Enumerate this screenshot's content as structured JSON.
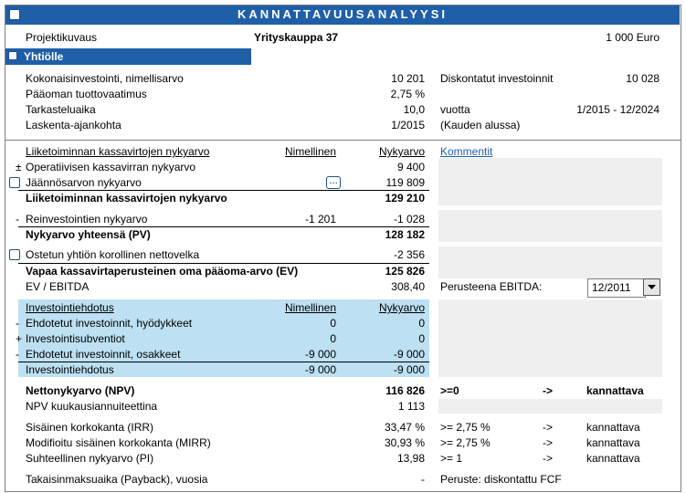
{
  "header": {
    "title": "KANNATTAVUUSANALYYSI"
  },
  "project": {
    "label": "Projektikuvaus",
    "name": "Yrityskauppa 37",
    "unit": "1 000 Euro"
  },
  "section": "Yhtiölle",
  "basics": [
    [
      "Kokonaisinvestointi, nimellisarvo",
      "10 201",
      "Diskontatut investoinnit",
      "10 028"
    ],
    [
      "Pääoman tuottovaatimus",
      "2,75 %"
    ],
    [
      "Tarkasteluaika",
      "10,0",
      "vuotta",
      "1/2015 - 12/2024"
    ],
    [
      "Laskenta-ajankohta",
      "1/2015",
      "(Kauden alussa)"
    ]
  ],
  "cashflow": {
    "headers": [
      "Liiketoiminnan kassavirtojen nykyarvo",
      "Nimellinen",
      "Nykyarvo",
      "Kommentit"
    ],
    "rows": [
      {
        "sign": "±",
        "label": "Operatiivisen kassavirran nykyarvo",
        "present": "9 400"
      },
      {
        "label": "Jäännösarvon nykyarvo",
        "button": "…",
        "present": "119 809"
      },
      {
        "label": "Liiketoiminnan kassavirtojen nykyarvo",
        "present": "129 210"
      },
      {
        "sign": "-",
        "label": "Reinvestointien nykyarvo",
        "nominal": "-1 201",
        "present": "-1 028"
      },
      {
        "label": "Nykyarvo yhteensä (PV)",
        "present": "128 182"
      },
      {
        "label": "Ostetun yhtiön korollinen nettovelka",
        "present": "-2 356"
      },
      {
        "label": "Vapaa kassavirtaperusteinen oma pääoma-arvo (EV)",
        "present": "125 826"
      },
      {
        "label": "EV / EBITDA",
        "present": "308,40",
        "note": "Perusteena EBITDA:",
        "select": "12/2011"
      }
    ]
  },
  "investment": {
    "headers": [
      "Investointiehdotus",
      "Nimellinen",
      "Nykyarvo"
    ],
    "rows": [
      {
        "sign": "-",
        "label": "Ehdotetut investoinnit, hyödykkeet",
        "nominal": "0",
        "present": "0"
      },
      {
        "sign": "+",
        "label": "Investointisubventiot",
        "nominal": "0",
        "present": "0"
      },
      {
        "sign": "-",
        "label": "Ehdotetut investoinnit, osakkeet",
        "nominal": "-9 000",
        "present": "-9 000"
      },
      {
        "label": "Investointiehdotus",
        "nominal": "-9 000",
        "present": "-9 000"
      }
    ]
  },
  "results": [
    {
      "label": "Nettonykyarvo (NPV)",
      "present": "116 826",
      "note": ">=0",
      "arrow": "->",
      "verdict": "kannattava"
    },
    {
      "label": "NPV kuukausiannuiteettina",
      "present": "1 113"
    },
    {
      "label": "Sisäinen korkokanta (IRR)",
      "present": "33,47 %",
      "note": ">= 2,75 %",
      "arrow": "->",
      "verdict": "kannattava"
    },
    {
      "label": "Modifioitu sisäinen korkokanta (MIRR)",
      "present": "30,93 %",
      "note": ">= 2,75 %",
      "arrow": "->",
      "verdict": "kannattava"
    },
    {
      "label": "Suhteellinen nykyarvo (PI)",
      "present": "13,98",
      "note": ">= 1",
      "arrow": "->",
      "verdict": "kannattava"
    },
    {
      "label": "Takaisinmaksuaika (Payback), vuosia",
      "present": "-",
      "note": "Peruste: diskontattu FCF"
    }
  ]
}
